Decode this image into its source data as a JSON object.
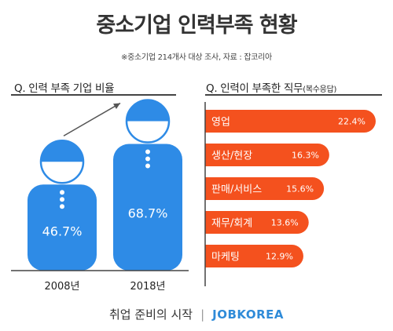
{
  "page": {
    "title": "중소기업 인력부족 현황",
    "source": "※중소기업 214개사 대상 조사, 자료 : 잡코리아"
  },
  "footer": {
    "tagline": "취업 준비의 시작",
    "separator": "|",
    "brand": "JOBKOREA"
  },
  "colors": {
    "blue": "#2e8be6",
    "blue_light": "#ffffff",
    "orange": "#f4511e",
    "orange_dark": "#c8401a"
  },
  "chart_data": [
    {
      "type": "bar",
      "title": "Q. 인력 부족 기업 비율",
      "categories": [
        "2008년",
        "2018년"
      ],
      "values": [
        46.7,
        68.7
      ],
      "value_labels": [
        "46.7%",
        "68.7%"
      ],
      "unit": "%",
      "style": "pictogram"
    },
    {
      "type": "bar",
      "orientation": "horizontal",
      "title": "Q. 인력이 부족한 직무",
      "title_suffix": "(복수응답)",
      "categories": [
        "영업",
        "생산/현장",
        "판매/서비스",
        "재무/회계",
        "마케팅"
      ],
      "values": [
        22.4,
        16.3,
        15.6,
        13.6,
        12.9
      ],
      "value_labels": [
        "22.4%",
        "16.3%",
        "15.6%",
        "13.6%",
        "12.9%"
      ],
      "unit": "%"
    }
  ]
}
